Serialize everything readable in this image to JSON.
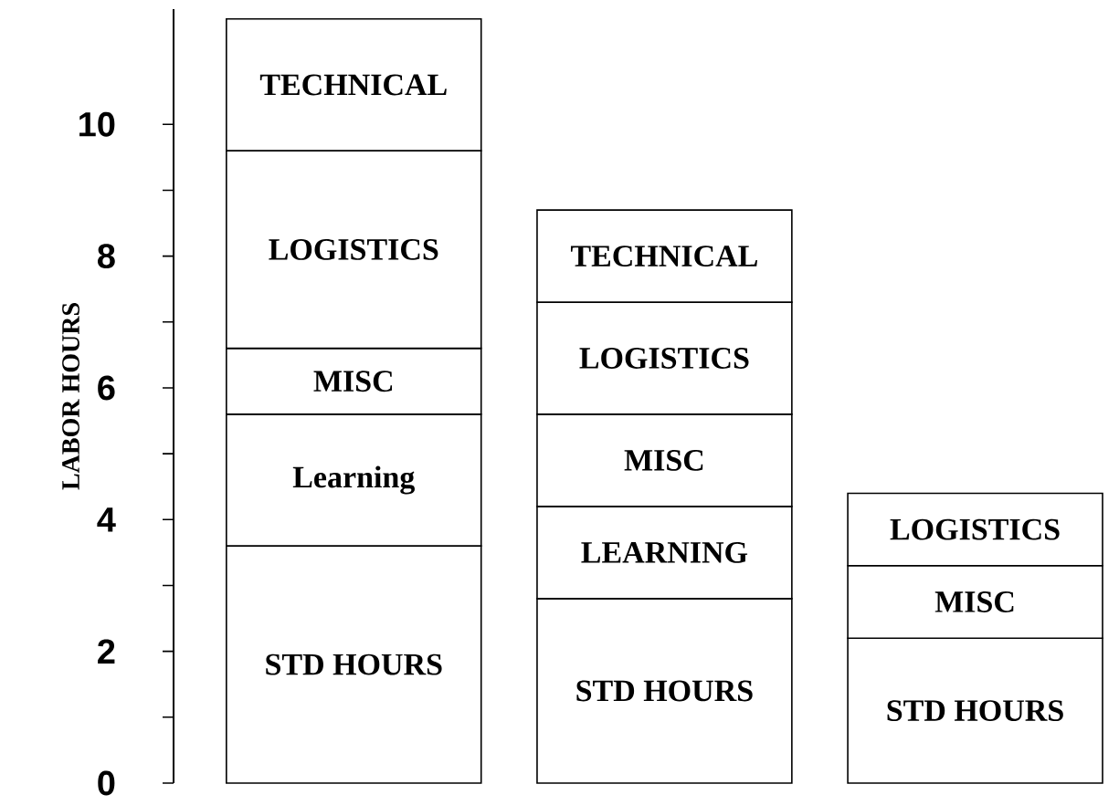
{
  "chart_data": {
    "type": "bar",
    "stacked": true,
    "ylabel": "LABOR HOURS",
    "categories": [
      null,
      null,
      null
    ],
    "series": [
      {
        "color": "#ffffff",
        "values": [
          3.6,
          2.8,
          2.2
        ],
        "value_labels": [
          "STD HOURS",
          "STD HOURS",
          "STD HOURS"
        ]
      },
      {
        "color": "#ffffff",
        "values": [
          2.0,
          1.4,
          null
        ],
        "value_labels": [
          "Learning",
          "LEARNING",
          null
        ]
      },
      {
        "color": "#ffffff",
        "values": [
          1.0,
          1.4,
          1.1
        ],
        "value_labels": [
          "MISC",
          "MISC",
          "MISC"
        ]
      },
      {
        "color": "#ffffff",
        "values": [
          3.0,
          1.7,
          1.1
        ],
        "value_labels": [
          "LOGISTICS",
          "LOGISTICS",
          "LOGISTICS"
        ]
      },
      {
        "color": "#ffffff",
        "values": [
          2.0,
          1.4,
          null
        ],
        "value_labels": [
          "TECHNICAL",
          "TECHNICAL",
          null
        ]
      }
    ],
    "ylim": [
      0,
      11.75
    ],
    "yticks": [
      0,
      2,
      4,
      6,
      8,
      10
    ],
    "grid": false
  }
}
